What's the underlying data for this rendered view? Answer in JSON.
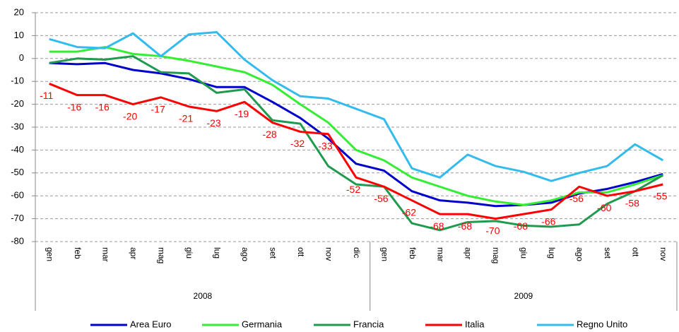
{
  "chart_data": {
    "type": "line",
    "categories": [
      "gen",
      "feb",
      "mar",
      "apr",
      "mag",
      "giu",
      "lug",
      "ago",
      "set",
      "ott",
      "nov",
      "dic",
      "gen",
      "feb",
      "mar",
      "apr",
      "mag",
      "giu",
      "lug",
      "ago",
      "set",
      "ott",
      "nov"
    ],
    "groups": [
      {
        "name": "2008",
        "count": 12
      },
      {
        "name": "2009",
        "count": 11
      }
    ],
    "ylim": [
      -80,
      20
    ],
    "yticks": [
      -80,
      -70,
      -60,
      -50,
      -40,
      -30,
      -20,
      -10,
      0,
      10,
      20
    ],
    "grid": true,
    "legend": "bottom",
    "series": [
      {
        "name": "Area Euro",
        "color": "#0000cc",
        "values": [
          -2,
          -2.5,
          -2,
          -5,
          -6.5,
          -9,
          -12.5,
          -12.5,
          -19,
          -26,
          -35,
          -46,
          -49,
          -58,
          -62,
          -63,
          -64.5,
          -64,
          -63,
          -59,
          -57,
          -54,
          -50.5
        ]
      },
      {
        "name": "Germania",
        "color": "#33ee33",
        "values": [
          3,
          3,
          5,
          2,
          1,
          -1,
          -3.5,
          -6,
          -11.5,
          -20,
          -28,
          -40,
          -44.5,
          -52,
          -56,
          -60,
          -62.5,
          -64,
          -62,
          -58.5,
          -58.5,
          -55,
          -51
        ]
      },
      {
        "name": "Francia",
        "color": "#1f9a4f",
        "values": [
          -2,
          0,
          -0.5,
          1,
          -6,
          -6.5,
          -15,
          -13.5,
          -27,
          -28.5,
          -47,
          -55,
          -56,
          -72,
          -75,
          -71.5,
          -71,
          -73,
          -73.5,
          -72.5,
          -63.5,
          -58,
          -51
        ]
      },
      {
        "name": "Italia",
        "color": "#ff0000",
        "values": [
          -11,
          -16,
          -16,
          -20,
          -17,
          -21,
          -23,
          -19,
          -28,
          -32,
          -33,
          -52,
          -56,
          -62,
          -68,
          -68,
          -70,
          -68,
          -66,
          -56,
          -60,
          -58,
          -55
        ],
        "show_labels": true
      },
      {
        "name": "Regno Unito",
        "color": "#33bbee",
        "values": [
          8.5,
          5,
          4.5,
          11,
          1,
          10.5,
          11.5,
          -0.5,
          -9.5,
          -16.5,
          -17.5,
          -22,
          -26.5,
          -48,
          -52,
          -42,
          -47,
          -49.5,
          -53.5,
          -50,
          -47,
          -37.5,
          -44.5
        ]
      }
    ]
  }
}
